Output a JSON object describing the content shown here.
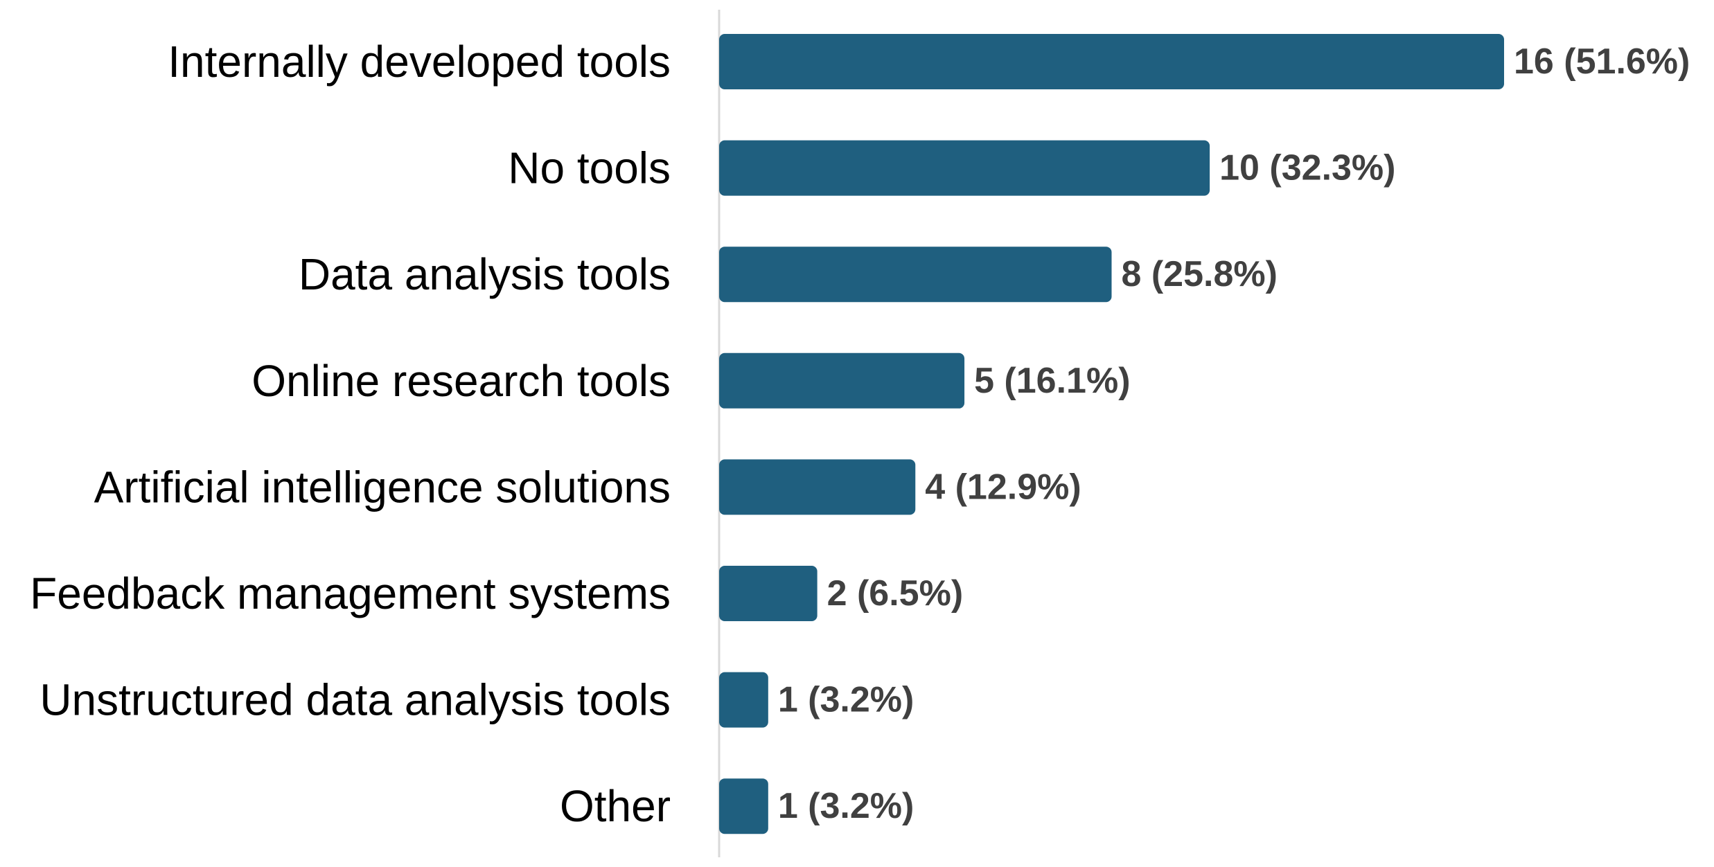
{
  "chart_data": {
    "type": "bar",
    "orientation": "horizontal",
    "title": "",
    "xlabel": "",
    "ylabel": "",
    "categories": [
      "Internally developed tools",
      "No tools",
      "Data analysis tools",
      "Online research tools",
      "Artificial intelligence solutions",
      "Feedback management systems",
      "Unstructured data analysis tools",
      "Other"
    ],
    "values": [
      16,
      10,
      8,
      5,
      4,
      2,
      1,
      1
    ],
    "percentages": [
      51.6,
      32.3,
      25.8,
      16.1,
      12.9,
      6.5,
      3.2,
      3.2
    ],
    "data_labels": [
      "16 (51.6%)",
      "10 (32.3%)",
      "8 (25.8%)",
      "5 (16.1%)",
      "4 (12.9%)",
      "2 (6.5%)",
      "1 (3.2%)",
      "1 (3.2%)"
    ],
    "xlim": [
      0,
      16
    ],
    "grid": false,
    "legend": "none",
    "colors": {
      "bar": "#1f5f7f",
      "axis": "#d9d9d9",
      "category_text": "#000000",
      "data_label_text": "#404040"
    }
  }
}
